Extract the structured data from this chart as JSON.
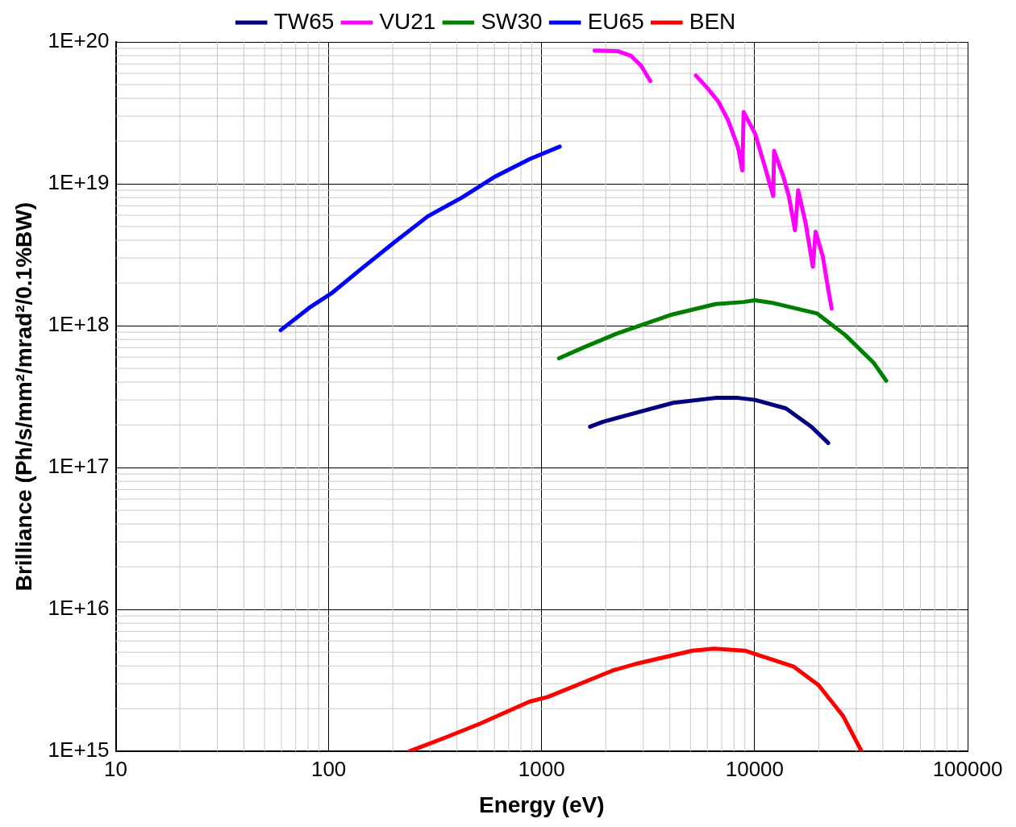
{
  "chart_data": {
    "type": "line",
    "xlabel": "Energy (eV)",
    "ylabel": "Brilliance (Ph/s/mm²/mrad²/0.1%BW)",
    "log": "xy",
    "grid": true,
    "legend": "top",
    "marker": "none",
    "line_style": "solid",
    "xlim": [
      10,
      100000
    ],
    "xticks": [
      10,
      100,
      1000,
      10000,
      100000
    ],
    "ylim": [
      1000000000000000.0,
      1e+20
    ],
    "yticks": [
      {
        "value": 1000000000000000.0,
        "label": "1E+15"
      },
      {
        "value": 1e+16,
        "label": "1E+16"
      },
      {
        "value": 1e+17,
        "label": "1E+17"
      },
      {
        "value": 1e+18,
        "label": "1E+18"
      },
      {
        "value": 1e+19,
        "label": "1E+19"
      },
      {
        "value": 1e+20,
        "label": "1E+20"
      }
    ],
    "series": [
      {
        "name": "TW65",
        "color": "#000080",
        "x": [
          1688,
          1936,
          2624,
          4146,
          6551,
          8360,
          10040,
          14040,
          18470,
          22170
        ],
        "values": [
          1.94e+17,
          2.1e+17,
          2.38e+17,
          2.86e+17,
          3.1e+17,
          3.1e+17,
          3e+17,
          2.61e+17,
          1.94e+17,
          1.49e+17
        ]
      },
      {
        "name": "VU21",
        "color": "#ff00ff",
        "x": [
          1770,
          2286,
          2623,
          2929,
          3236,
          4000,
          5292,
          5951,
          6753,
          7514,
          8360,
          8753,
          8880,
          10040,
          11000,
          12230,
          12340,
          13620,
          14470,
          15470,
          16010,
          17390,
          18760,
          19330,
          20870,
          22170,
          22990
        ],
        "values": [
          8.7e+19,
          8.6e+19,
          8e+19,
          6.8e+19,
          5.3e+19,
          null,
          5.8e+19,
          4.8e+19,
          3.8e+19,
          2.8e+19,
          1.8e+19,
          1.24e+19,
          3.2e+19,
          2.26e+19,
          1.43e+19,
          8.2e+18,
          1.71e+19,
          1.13e+19,
          8.2e+18,
          4.7e+18,
          9e+18,
          5.2e+18,
          2.6e+18,
          4.6e+18,
          3.1e+18,
          1.8e+18,
          1.32e+18
        ]
      },
      {
        "name": "SW30",
        "color": "#008000",
        "x": [
          1206,
          1563,
          2252,
          4022,
          6551,
          8880,
          10040,
          12060,
          19630,
          26620,
          36130,
          41470
        ],
        "values": [
          5.9e+17,
          7e+17,
          8.8e+17,
          1.19e+18,
          1.42e+18,
          1.47e+18,
          1.51e+18,
          1.45e+18,
          1.22e+18,
          8.6e+17,
          5.5e+17,
          4.1e+17
        ]
      },
      {
        "name": "EU65",
        "color": "#0000ff",
        "x": [
          59.5,
          81.2,
          103,
          141,
          203,
          292,
          422,
          608,
          876,
          1216
        ],
        "values": [
          9.3e+17,
          1.34e+18,
          1.69e+18,
          2.49e+18,
          3.86e+18,
          5.9e+18,
          8e+18,
          1.13e+19,
          1.49e+19,
          1.83e+19
        ]
      },
      {
        "name": "BEN",
        "color": "#ff0000",
        "x": [
          239,
          357,
          514,
          876,
          1069,
          2150,
          2806,
          5103,
          6444,
          8980,
          15290,
          19960,
          26050,
          31800
        ],
        "values": [
          1000000000000000.0,
          1260000000000000.0,
          1570000000000000.0,
          2240000000000000.0,
          2420000000000000.0,
          3710000000000000.0,
          4160000000000000.0,
          5130000000000000.0,
          5290000000000000.0,
          5130000000000000.0,
          3950000000000000.0,
          2930000000000000.0,
          1770000000000000.0,
          1000000000000000.0
        ]
      }
    ]
  }
}
